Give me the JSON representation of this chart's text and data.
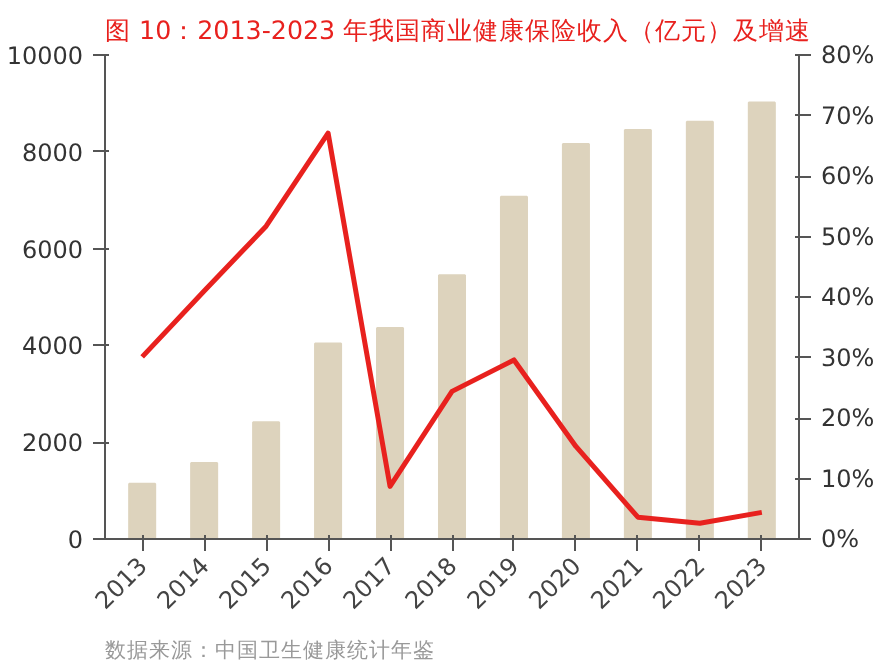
{
  "chart_data": {
    "type": "bar",
    "title": "图 10：2013-2023 年我国商业健康保险收入（亿元）及增速",
    "categories": [
      "2013",
      "2014",
      "2015",
      "2016",
      "2017",
      "2018",
      "2019",
      "2020",
      "2021",
      "2022",
      "2023"
    ],
    "series": [
      {
        "color": "#ddd3bd",
        "values": [
          1140,
          1570,
          2410,
          4040,
          4360,
          5450,
          7070,
          8160,
          8450,
          8620,
          9020
        ]
      },
      {
        "type": "line",
        "axis": "y2",
        "color": "#e8211e",
        "values": [
          30.1,
          41,
          51.7,
          67.1,
          8.7,
          24.4,
          29.6,
          15.3,
          3.6,
          2.6,
          4.4
        ]
      }
    ],
    "ylim": [
      0,
      10000
    ],
    "yticks": [
      0,
      2000,
      4000,
      6000,
      8000,
      10000
    ],
    "y2lim": [
      0,
      80
    ],
    "y2ticks": [
      {
        "value": 0,
        "label": "0%"
      },
      {
        "value": 10,
        "label": "10%"
      },
      {
        "value": 20,
        "label": "20%"
      },
      {
        "value": 30,
        "label": "30%"
      },
      {
        "value": 40,
        "label": "40%"
      },
      {
        "value": 50,
        "label": "50%"
      },
      {
        "value": 60,
        "label": "60%"
      },
      {
        "value": 70,
        "label": "70%"
      },
      {
        "value": 80,
        "label": "80%"
      }
    ],
    "grid": false,
    "annotations": [
      "数据来源：中国卫生健康统计年鉴"
    ]
  }
}
